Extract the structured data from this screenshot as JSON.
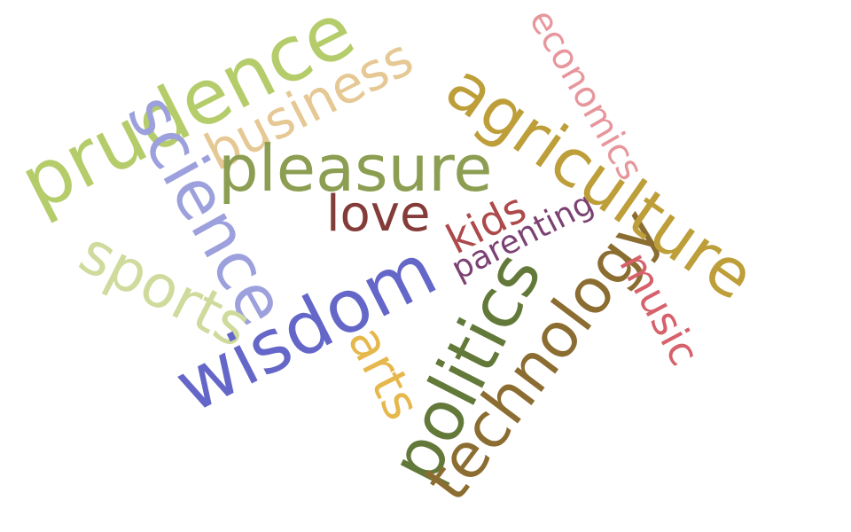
{
  "words": [
    {
      "text": "prudence",
      "color": "#b5cc6a"
    },
    {
      "text": "science",
      "color": "#9ca0dc"
    },
    {
      "text": "business",
      "color": "#e6c894"
    },
    {
      "text": "pleasure",
      "color": "#8c9e52"
    },
    {
      "text": "love",
      "color": "#843c39"
    },
    {
      "text": "sports",
      "color": "#cedb9c"
    },
    {
      "text": "wisdom",
      "color": "#6467c8"
    },
    {
      "text": "arts",
      "color": "#e6b84b"
    },
    {
      "text": "politics",
      "color": "#637939"
    },
    {
      "text": "technology",
      "color": "#8c6d31"
    },
    {
      "text": "kids",
      "color": "#ad494a"
    },
    {
      "text": "parenting",
      "color": "#7b4173"
    },
    {
      "text": "agriculture",
      "color": "#bd9e39"
    },
    {
      "text": "economics",
      "color": "#e7969c"
    },
    {
      "text": "music",
      "color": "#d6616b"
    }
  ]
}
